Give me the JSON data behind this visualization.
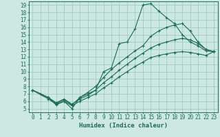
{
  "xlabel": "Humidex (Indice chaleur)",
  "bg_color": "#cce8e0",
  "grid_color": "#9ecec4",
  "line_color": "#1a6b5a",
  "xlim": [
    -0.5,
    23.5
  ],
  "ylim": [
    4.5,
    19.5
  ],
  "xticks": [
    0,
    1,
    2,
    3,
    4,
    5,
    6,
    7,
    8,
    9,
    10,
    11,
    12,
    13,
    14,
    15,
    16,
    17,
    18,
    19,
    20,
    21,
    22,
    23
  ],
  "yticks": [
    5,
    6,
    7,
    8,
    9,
    10,
    11,
    12,
    13,
    14,
    15,
    16,
    17,
    18,
    19
  ],
  "series": [
    {
      "x": [
        0,
        1,
        2,
        3,
        4,
        5,
        6,
        7,
        8,
        9,
        10,
        11,
        12,
        13,
        14,
        15,
        16,
        17,
        18,
        19,
        20,
        21,
        22,
        23
      ],
      "y": [
        7.5,
        7.0,
        6.5,
        5.5,
        6.0,
        5.0,
        6.5,
        7.0,
        7.5,
        10.0,
        10.5,
        13.8,
        14.0,
        15.8,
        19.0,
        19.2,
        18.2,
        17.3,
        16.5,
        15.0,
        14.0,
        13.5,
        12.8,
        12.7
      ]
    },
    {
      "x": [
        0,
        2,
        3,
        4,
        5,
        6,
        7,
        8,
        9,
        10,
        11,
        12,
        13,
        14,
        15,
        16,
        17,
        18,
        19,
        20,
        21,
        22,
        23
      ],
      "y": [
        7.5,
        6.5,
        5.7,
        6.2,
        5.5,
        6.5,
        7.2,
        8.0,
        9.2,
        10.3,
        11.2,
        12.0,
        12.8,
        13.5,
        14.8,
        15.5,
        16.0,
        16.3,
        16.5,
        15.5,
        14.0,
        13.0,
        12.7
      ]
    },
    {
      "x": [
        0,
        2,
        3,
        4,
        5,
        6,
        7,
        8,
        9,
        10,
        11,
        12,
        13,
        14,
        15,
        16,
        17,
        18,
        19,
        20,
        21,
        22,
        23
      ],
      "y": [
        7.5,
        6.5,
        5.8,
        6.3,
        5.6,
        6.3,
        6.8,
        7.5,
        8.5,
        9.3,
        10.2,
        11.0,
        11.8,
        12.5,
        13.2,
        13.7,
        14.0,
        14.3,
        14.5,
        14.3,
        13.8,
        13.0,
        12.7
      ]
    },
    {
      "x": [
        0,
        2,
        3,
        4,
        5,
        6,
        7,
        8,
        9,
        10,
        11,
        12,
        13,
        14,
        15,
        16,
        17,
        18,
        19,
        20,
        21,
        22,
        23
      ],
      "y": [
        7.5,
        6.3,
        5.6,
        6.0,
        5.4,
        6.0,
        6.5,
        7.0,
        7.8,
        8.5,
        9.3,
        10.0,
        10.7,
        11.3,
        11.9,
        12.2,
        12.4,
        12.6,
        12.7,
        12.6,
        12.4,
        12.2,
        12.7
      ]
    }
  ]
}
